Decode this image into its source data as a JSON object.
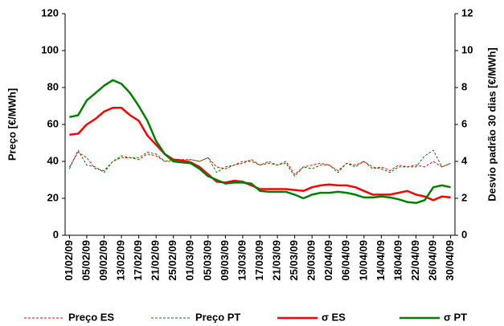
{
  "chart_data": {
    "type": "line",
    "categories": [
      "01/02/09",
      null,
      "05/02/09",
      null,
      "09/02/09",
      null,
      "13/02/09",
      null,
      "17/02/09",
      null,
      "21/02/09",
      null,
      "25/02/09",
      null,
      "01/03/09",
      null,
      "05/03/09",
      null,
      "09/03/09",
      null,
      "13/03/09",
      null,
      "17/03/09",
      null,
      "21/03/09",
      null,
      "25/03/09",
      null,
      "29/03/09",
      null,
      "02/04/09",
      null,
      "06/04/09",
      null,
      "10/04/09",
      null,
      "14/04/09",
      null,
      "18/04/09",
      null,
      "22/04/09",
      null,
      "26/04/09",
      null,
      "30/04/09"
    ],
    "y_label": "Preço [€/MWh]",
    "y2_label": "Desvio padrão 30 dias [€/MWh]",
    "ylim": [
      0,
      120
    ],
    "yticks": [
      0,
      20,
      40,
      60,
      80,
      100,
      120
    ],
    "y2lim": [
      0,
      12
    ],
    "y2ticks": [
      0,
      2,
      4,
      6,
      8,
      10,
      12
    ],
    "series": [
      {
        "name": "Preço ES",
        "color": "#ff0000",
        "linestyle": "dashed",
        "values": [
          37,
          45,
          42,
          36,
          35,
          40,
          42,
          42,
          41,
          44,
          43,
          40,
          41,
          41,
          41,
          40,
          42,
          37,
          36,
          38,
          39,
          41,
          38,
          40,
          38,
          40,
          33,
          37,
          38,
          39,
          38,
          35,
          39,
          38,
          40,
          36,
          37,
          35,
          38,
          37,
          38,
          37,
          40,
          37,
          39
        ]
      },
      {
        "name": "Preço PT",
        "color": "#008000",
        "linestyle": "dashed",
        "values": [
          36,
          46,
          38,
          37,
          34,
          40,
          43,
          42,
          42,
          45,
          44,
          40,
          40,
          40,
          41,
          40,
          42,
          34,
          37,
          38,
          40,
          40,
          38,
          39,
          38,
          39,
          32,
          37,
          36,
          38,
          38,
          34,
          39,
          37,
          40,
          37,
          36,
          34,
          37,
          37,
          37,
          43,
          46,
          37,
          39
        ]
      },
      {
        "name": "σ ES",
        "color": "#ff0000",
        "linestyle": "solid",
        "axis": "y2",
        "values": [
          5.45,
          5.5,
          6.0,
          6.3,
          6.7,
          6.9,
          6.9,
          6.5,
          6.2,
          5.4,
          4.9,
          4.4,
          4.1,
          4.05,
          3.95,
          3.7,
          3.3,
          2.9,
          2.85,
          2.95,
          2.9,
          2.7,
          2.5,
          2.5,
          2.5,
          2.5,
          2.45,
          2.4,
          2.6,
          2.7,
          2.75,
          2.7,
          2.7,
          2.6,
          2.4,
          2.2,
          2.2,
          2.2,
          2.3,
          2.4,
          2.2,
          2.1,
          1.9,
          2.1,
          2.05
        ]
      },
      {
        "name": "σ PT",
        "color": "#008000",
        "linestyle": "solid",
        "axis": "y2",
        "values": [
          6.4,
          6.5,
          7.3,
          7.7,
          8.1,
          8.4,
          8.2,
          7.7,
          7.0,
          6.2,
          5.1,
          4.4,
          4.0,
          3.95,
          3.9,
          3.6,
          3.2,
          3.0,
          2.8,
          2.85,
          2.85,
          2.8,
          2.4,
          2.35,
          2.35,
          2.35,
          2.2,
          2.0,
          2.2,
          2.3,
          2.3,
          2.35,
          2.3,
          2.2,
          2.05,
          2.05,
          2.1,
          2.05,
          1.95,
          1.8,
          1.75,
          1.9,
          2.6,
          2.7,
          2.6
        ]
      }
    ]
  }
}
